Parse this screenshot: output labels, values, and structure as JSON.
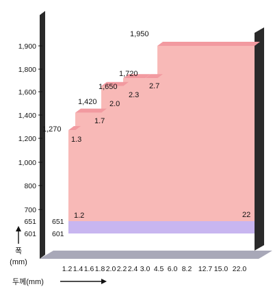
{
  "chart_data": {
    "type": "area",
    "title": "",
    "ylabel": "폭\n(mm)",
    "xlabel": "두께(mm)",
    "y_ticks": [
      "601",
      "651",
      "700",
      "800",
      "1,000",
      "1,200",
      "1,400",
      "1,600",
      "1,800",
      "1,900"
    ],
    "x_ticks": [
      "1.2",
      "1.4",
      "1.6",
      "1.8",
      "2.0",
      "2.2",
      "2.4",
      "3.0",
      "4.5",
      "6.0",
      "8.2",
      "12.7",
      "15.0",
      "22.0"
    ],
    "series": [
      {
        "values": [
          {
            "thickness": 1.2,
            "width_max": 1270,
            "label": "1,270"
          },
          {
            "thickness": 1.3,
            "width_max": 1420,
            "label": "1,420"
          },
          {
            "thickness": 1.7,
            "width_max": 1650,
            "label": "1,650"
          },
          {
            "thickness": 2.0,
            "width_max": 1720,
            "label": "1,720"
          },
          {
            "thickness": 2.3,
            "width_max": 1720,
            "label": ""
          },
          {
            "thickness": 2.7,
            "width_max": 1950,
            "label": "1,950"
          }
        ]
      }
    ],
    "thickness_labels": [
      "1.2",
      "1.3",
      "1.7",
      "2.0",
      "2.3",
      "2.7",
      "22"
    ],
    "band_min_width": 601,
    "band_max_width": 651,
    "colors": {
      "area": "#f8b9b7",
      "area_top": "#f29aa0",
      "band": "#c8b6f0",
      "floor": "#a8a8b8",
      "wall": "#2a2a2a"
    }
  }
}
